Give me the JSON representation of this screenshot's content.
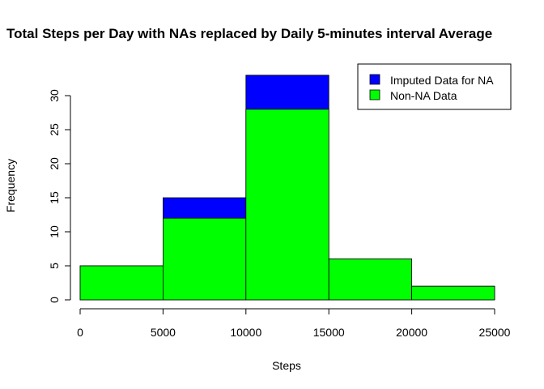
{
  "chart_data": {
    "type": "bar",
    "title": "Total Steps per Day with NAs replaced by Daily 5-minutes interval Average",
    "xlabel": "Steps",
    "ylabel": "Frequency",
    "bins": [
      [
        0,
        5000
      ],
      [
        5000,
        10000
      ],
      [
        10000,
        15000
      ],
      [
        15000,
        20000
      ],
      [
        20000,
        25000
      ]
    ],
    "x_ticks": [
      0,
      5000,
      10000,
      15000,
      20000,
      25000
    ],
    "x_tick_labels": [
      "0",
      "5000",
      "10000",
      "15000",
      "20000",
      "25000"
    ],
    "y_ticks": [
      0,
      5,
      10,
      15,
      20,
      25,
      30
    ],
    "y_tick_labels": [
      "0",
      "5",
      "10",
      "15",
      "20",
      "25",
      "30"
    ],
    "xlim": [
      0,
      25000
    ],
    "ylim": [
      0,
      33
    ],
    "grid": false,
    "legend_position": "top-right",
    "series": [
      {
        "name": "Imputed Data for NA",
        "color": "#0000ff",
        "values": [
          5,
          15,
          33,
          6,
          2
        ]
      },
      {
        "name": "Non-NA Data",
        "color": "#00ff00",
        "values": [
          5,
          12,
          28,
          6,
          2
        ]
      }
    ]
  }
}
